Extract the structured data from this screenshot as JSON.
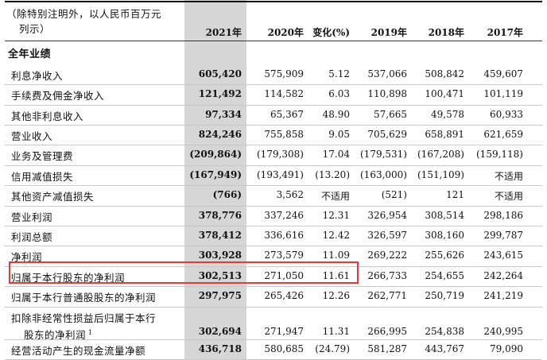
{
  "header": {
    "note_line1": "（除特别注明外，以人民币百万元",
    "note_line2": "列示）",
    "columns": [
      "2021年",
      "2020年",
      "变化(%)",
      "2019年",
      "2018年",
      "2017年"
    ]
  },
  "section_title": "全年业绩",
  "rows": [
    {
      "label": "利息净收入",
      "values": [
        "605,420",
        "575,909",
        "5.12",
        "537,066",
        "508,842",
        "459,607"
      ]
    },
    {
      "label": "手续费及佣金净收入",
      "values": [
        "121,492",
        "114,582",
        "6.03",
        "110,898",
        "100,471",
        "101,119"
      ]
    },
    {
      "label": "其他非利息收入",
      "values": [
        "97,334",
        "65,367",
        "48.90",
        "57,665",
        "49,578",
        "60,933"
      ]
    },
    {
      "label": "营业收入",
      "values": [
        "824,246",
        "755,858",
        "9.05",
        "705,629",
        "658,891",
        "621,659"
      ]
    },
    {
      "label": "业务及管理费",
      "values": [
        "(209,864)",
        "(179,308)",
        "17.04",
        "(179,531)",
        "(167,208)",
        "(159,118)"
      ]
    },
    {
      "label": "信用减值损失",
      "values": [
        "(167,949)",
        "(193,491)",
        "(13.20)",
        "(163,000)",
        "(151,109)",
        "不适用"
      ]
    },
    {
      "label": "其他资产减值损失",
      "values": [
        "(766)",
        "3,562",
        "不适用",
        "(521)",
        "121",
        "不适用"
      ]
    },
    {
      "label": "营业利润",
      "values": [
        "378,776",
        "337,246",
        "12.31",
        "326,954",
        "308,514",
        "298,186"
      ]
    },
    {
      "label": "利润总额",
      "values": [
        "378,412",
        "336,616",
        "12.42",
        "326,597",
        "308,160",
        "299,787"
      ]
    },
    {
      "label": "净利润",
      "values": [
        "303,928",
        "273,579",
        "11.09",
        "269,222",
        "255,626",
        "243,615"
      ]
    },
    {
      "label": "归属于本行股东的净利润",
      "values": [
        "302,513",
        "271,050",
        "11.61",
        "266,733",
        "254,655",
        "242,264"
      ]
    },
    {
      "label": "归属于本行普通股股东的净利润",
      "values": [
        "297,975",
        "265,426",
        "12.26",
        "262,771",
        "250,719",
        "241,219"
      ]
    },
    {
      "label": "扣除非经常性损益后归属于本行",
      "label2": "股东的净利润",
      "sup": "1",
      "values": [
        "302,694",
        "271,947",
        "11.31",
        "266,995",
        "254,838",
        "240,995"
      ]
    },
    {
      "label": "经营活动产生的现金流量净额",
      "values": [
        "436,718",
        "580,685",
        "(24.79)",
        "581,287",
        "443,767",
        "79,090"
      ]
    }
  ]
}
